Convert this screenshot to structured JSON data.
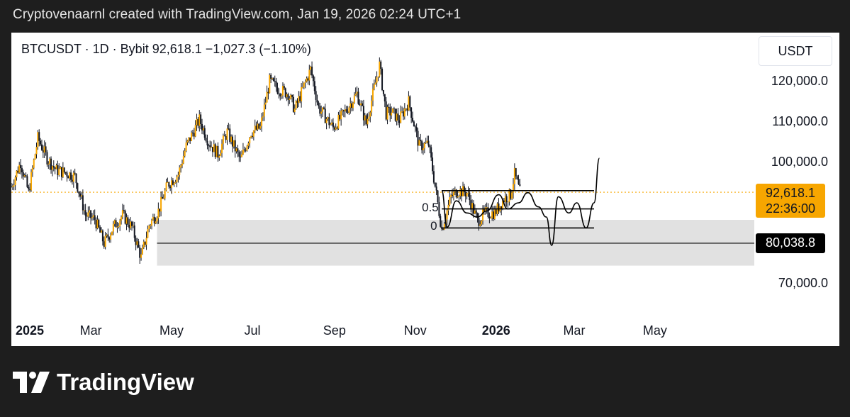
{
  "caption": "Cryptovenaarnl created with TradingView.com, Jan 19, 2026 02:24 UTC+1",
  "brand": {
    "name": "TradingView",
    "logo_icon": "tradingview-logo-icon"
  },
  "colors": {
    "candle": "#f7a600",
    "price_line": "#f7a600",
    "zone": "#e1e1e1",
    "drawing": "#000000"
  },
  "chart_data": {
    "type": "candlestick",
    "symbol": "BTCUSDT",
    "interval": "1D",
    "exchange": "Bybit",
    "last_price": "92,618.1",
    "change": "−1,027.3",
    "change_pct": "(−1.10%)",
    "symbol_line": "BTCUSDT · 1D · Bybit  92,618.1  −1,027.3 (−1.10%)",
    "currency": "USDT",
    "countdown": "22:36:00",
    "current_price": 92618.1,
    "ylim": [
      62000,
      132000
    ],
    "y_ticks": [
      {
        "value": 120000,
        "label": "120,000.0"
      },
      {
        "value": 110000,
        "label": "110,000.0"
      },
      {
        "value": 100000,
        "label": "100,000.0"
      },
      {
        "value": 70000,
        "label": "70,000.0"
      }
    ],
    "x_ticks": [
      {
        "date": "2025-01-01",
        "label": "2025",
        "bold": true
      },
      {
        "date": "2025-03-01",
        "label": "Mar",
        "bold": false
      },
      {
        "date": "2025-05-01",
        "label": "May",
        "bold": false
      },
      {
        "date": "2025-07-01",
        "label": "Jul",
        "bold": false
      },
      {
        "date": "2025-09-01",
        "label": "Sep",
        "bold": false
      },
      {
        "date": "2025-11-01",
        "label": "Nov",
        "bold": false
      },
      {
        "date": "2026-01-01",
        "label": "2026",
        "bold": true
      },
      {
        "date": "2026-03-01",
        "label": "Mar",
        "bold": false
      },
      {
        "date": "2026-05-01",
        "label": "May",
        "bold": false
      }
    ],
    "xlim": [
      "2024-12-31",
      "2026-07-15"
    ],
    "price_path": [
      [
        "2024-12-31",
        94000
      ],
      [
        "2025-01-07",
        100000
      ],
      [
        "2025-01-13",
        92500
      ],
      [
        "2025-01-20",
        106000
      ],
      [
        "2025-01-27",
        101000
      ],
      [
        "2025-02-03",
        98000
      ],
      [
        "2025-02-10",
        97500
      ],
      [
        "2025-02-17",
        96500
      ],
      [
        "2025-02-25",
        87000
      ],
      [
        "2025-03-04",
        86000
      ],
      [
        "2025-03-11",
        80000
      ],
      [
        "2025-03-18",
        84000
      ],
      [
        "2025-03-25",
        87000
      ],
      [
        "2025-04-01",
        84000
      ],
      [
        "2025-04-08",
        76500
      ],
      [
        "2025-04-14",
        84500
      ],
      [
        "2025-04-21",
        88000
      ],
      [
        "2025-04-28",
        94500
      ],
      [
        "2025-05-06",
        97000
      ],
      [
        "2025-05-12",
        104000
      ],
      [
        "2025-05-22",
        110500
      ],
      [
        "2025-05-29",
        105000
      ],
      [
        "2025-06-05",
        102000
      ],
      [
        "2025-06-12",
        107500
      ],
      [
        "2025-06-22",
        100500
      ],
      [
        "2025-06-30",
        107500
      ],
      [
        "2025-07-07",
        108500
      ],
      [
        "2025-07-14",
        120000
      ],
      [
        "2025-07-21",
        118000
      ],
      [
        "2025-07-28",
        117000
      ],
      [
        "2025-08-02",
        113000
      ],
      [
        "2025-08-14",
        123000
      ],
      [
        "2025-08-20",
        113500
      ],
      [
        "2025-08-31",
        108500
      ],
      [
        "2025-09-08",
        112000
      ],
      [
        "2025-09-18",
        117000
      ],
      [
        "2025-09-25",
        109500
      ],
      [
        "2025-10-05",
        124000
      ],
      [
        "2025-10-10",
        112000
      ],
      [
        "2025-10-14",
        112500
      ],
      [
        "2025-10-20",
        110500
      ],
      [
        "2025-10-27",
        115000
      ],
      [
        "2025-11-04",
        104000
      ],
      [
        "2025-11-11",
        104500
      ],
      [
        "2025-11-17",
        92000
      ],
      [
        "2025-11-21",
        83500
      ],
      [
        "2025-11-28",
        91500
      ],
      [
        "2025-12-03",
        93000
      ],
      [
        "2025-12-10",
        92500
      ],
      [
        "2025-12-18",
        85500
      ],
      [
        "2025-12-24",
        87500
      ],
      [
        "2025-12-31",
        87500
      ],
      [
        "2026-01-07",
        91000
      ],
      [
        "2026-01-12",
        92000
      ],
      [
        "2026-01-15",
        97000
      ],
      [
        "2026-01-19",
        92618
      ]
    ],
    "support_zone": {
      "from": "2025-04-20",
      "to": "2026-07-15",
      "low": 74500,
      "high": 85800
    },
    "support_line": {
      "from": "2025-04-20",
      "to": "2026-07-15",
      "value": 80038.8,
      "label": "80,038.8"
    },
    "fib_levels": [
      {
        "level": "0",
        "value": 83800
      },
      {
        "level": "0.5",
        "value": 88500
      },
      {
        "level": "1",
        "value": 93000
      }
    ],
    "fib_range": {
      "from": "2025-11-21",
      "to": "2026-03-16"
    },
    "projection": [
      [
        "2025-11-21",
        93000
      ],
      [
        "2025-11-25",
        84000
      ],
      [
        "2025-12-02",
        90500
      ],
      [
        "2025-12-10",
        87500
      ],
      [
        "2025-12-18",
        86500
      ],
      [
        "2025-12-25",
        88000
      ],
      [
        "2026-01-03",
        92000
      ],
      [
        "2026-01-10",
        88500
      ],
      [
        "2026-01-18",
        90000
      ],
      [
        "2026-01-25",
        92500
      ],
      [
        "2026-02-02",
        89000
      ],
      [
        "2026-02-08",
        86500
      ],
      [
        "2026-02-12",
        79500
      ],
      [
        "2026-02-17",
        91500
      ],
      [
        "2026-02-25",
        87500
      ],
      [
        "2026-03-03",
        90000
      ],
      [
        "2026-03-10",
        83800
      ],
      [
        "2026-03-16",
        90000
      ],
      [
        "2026-03-20",
        101000
      ]
    ]
  }
}
